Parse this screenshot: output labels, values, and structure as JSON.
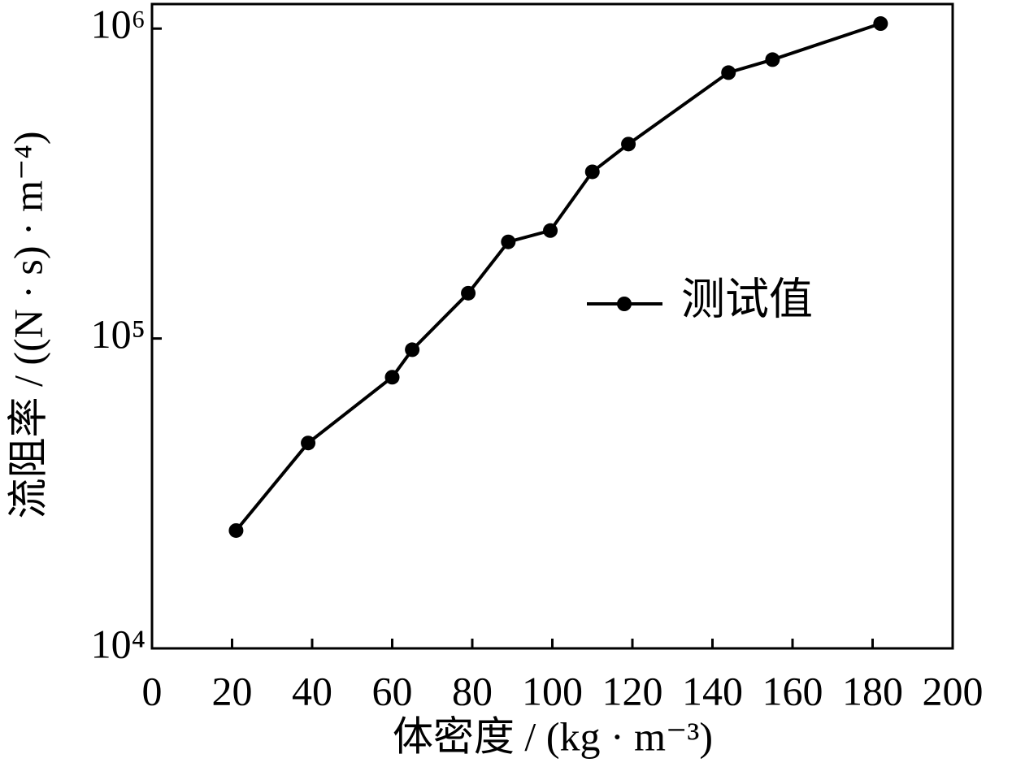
{
  "chart_data": {
    "type": "line",
    "x_label": "体密度 / (kg · m⁻³)",
    "y_label": "流阻率 / ((N · s) · m⁻⁴)",
    "x": [
      21,
      39,
      60,
      65,
      79,
      89,
      99.5,
      110,
      119,
      144,
      155,
      182
    ],
    "series": [
      {
        "name": "测试值",
        "color": "#000000",
        "values": [
          24000,
          46000,
          75000,
          92000,
          140000,
          205000,
          223000,
          345000,
          424000,
          721000,
          794000,
          1038000
        ]
      }
    ],
    "xlim": [
      0,
      200
    ],
    "xticks": [
      0,
      20,
      40,
      60,
      80,
      100,
      120,
      140,
      160,
      180,
      200
    ],
    "ylim": [
      10000,
      1200000
    ],
    "yticks": [
      {
        "value": 10000,
        "label": "10⁴"
      },
      {
        "value": 100000,
        "label": "10⁵"
      },
      {
        "value": 1000000,
        "label": "10⁶"
      }
    ],
    "y_scale": "log",
    "legend": "center-right"
  }
}
